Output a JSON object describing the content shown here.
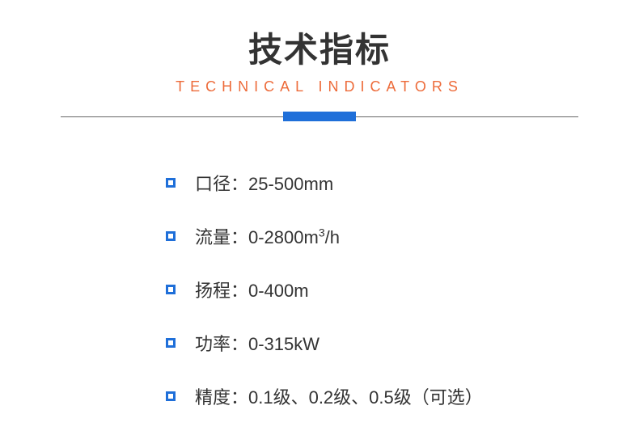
{
  "header": {
    "title_cn": "技术指标",
    "title_en": "TECHNICAL INDICATORS"
  },
  "styling": {
    "title_cn_color": "#333333",
    "title_cn_fontsize": 42,
    "title_en_color": "#ed6b3a",
    "title_en_fontsize": 18,
    "title_en_letterspacing": 7,
    "divider_line_color": "#666666",
    "divider_bar_color": "#1f6fd9",
    "divider_bar_width": 90,
    "divider_bar_height": 12,
    "bullet_border_color": "#1f6fd9",
    "bullet_size": 12,
    "bullet_border_width": 3,
    "spec_text_color": "#333333",
    "spec_text_fontsize": 22,
    "background_color": "#ffffff"
  },
  "specs": [
    {
      "label": "口径：",
      "value": "25-500mm"
    },
    {
      "label": "流量：",
      "value_html": "0-2800m<sup>3</sup>/h"
    },
    {
      "label": "扬程：",
      "value": "0-400m"
    },
    {
      "label": "功率：",
      "value": "0-315kW"
    },
    {
      "label": "精度：",
      "value": "0.1级、0.2级、0.5级（可选）"
    }
  ]
}
